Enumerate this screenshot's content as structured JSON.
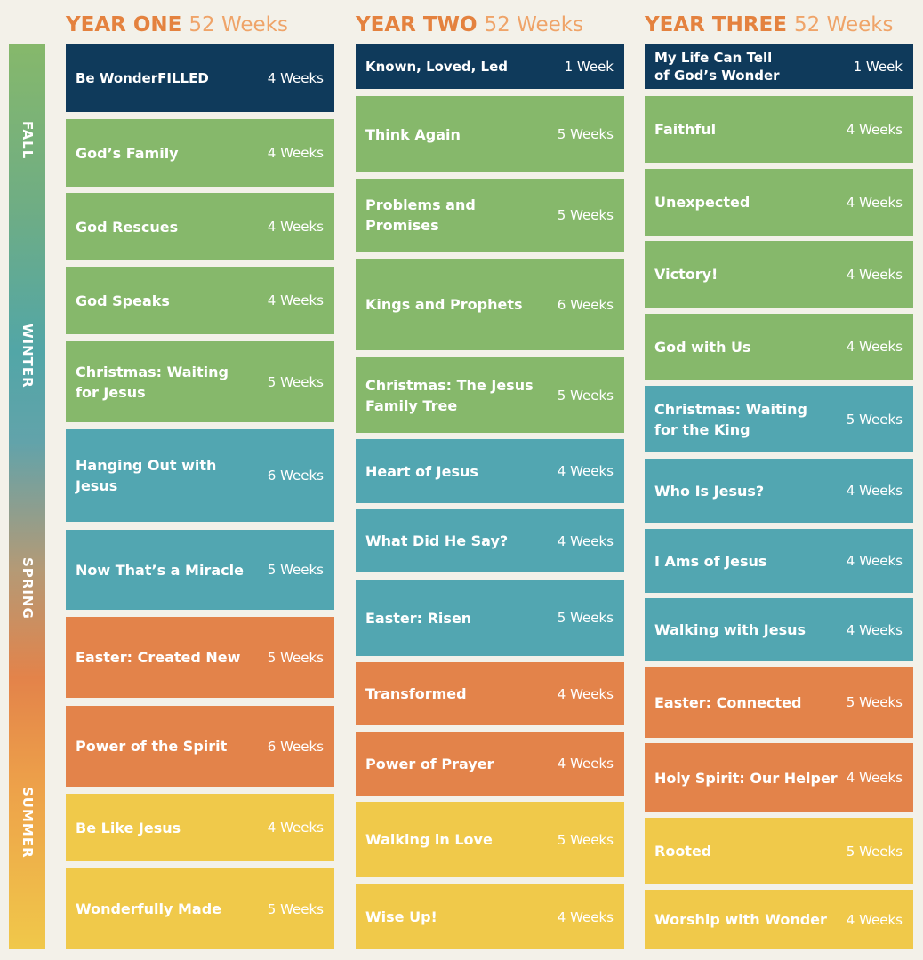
{
  "seasons": [
    "FALL",
    "WINTER",
    "SPRING",
    "SUMMER"
  ],
  "years": [
    {
      "label": "YEAR ONE",
      "weeks": "52 Weeks",
      "units": [
        {
          "title": "Be WonderFILLED",
          "duration": "4 Weeks",
          "color": "navy"
        },
        {
          "title": "God’s Family",
          "duration": "4 Weeks",
          "color": "green"
        },
        {
          "title": "God Rescues",
          "duration": "4 Weeks",
          "color": "green"
        },
        {
          "title": "God Speaks",
          "duration": "4 Weeks",
          "color": "green"
        },
        {
          "title": "Christmas: Waiting\nfor Jesus",
          "duration": "5 Weeks",
          "color": "green"
        },
        {
          "title": "Hanging Out with Jesus",
          "duration": "6 Weeks",
          "color": "teal"
        },
        {
          "title": "Now That’s a Miracle",
          "duration": "5 Weeks",
          "color": "teal"
        },
        {
          "title": "Easter: Created New",
          "duration": "5 Weeks",
          "color": "orange"
        },
        {
          "title": "Power of the Spirit",
          "duration": "6 Weeks",
          "color": "orange"
        },
        {
          "title": "Be Like Jesus",
          "duration": "4 Weeks",
          "color": "yellow"
        },
        {
          "title": "Wonderfully Made",
          "duration": "5 Weeks",
          "color": "yellow"
        }
      ]
    },
    {
      "label": "YEAR TWO",
      "weeks": "52 Weeks",
      "units": [
        {
          "title": "Known, Loved, Led",
          "duration": "1 Week",
          "color": "navy"
        },
        {
          "title": "Think Again",
          "duration": "5 Weeks",
          "color": "green"
        },
        {
          "title": "Problems and Promises",
          "duration": "5 Weeks",
          "color": "green"
        },
        {
          "title": "Kings and Prophets",
          "duration": "6 Weeks",
          "color": "green"
        },
        {
          "title": "Christmas: The Jesus\nFamily Tree",
          "duration": "5 Weeks",
          "color": "green"
        },
        {
          "title": "Heart of Jesus",
          "duration": "4 Weeks",
          "color": "teal"
        },
        {
          "title": "What Did He Say?",
          "duration": "4 Weeks",
          "color": "teal"
        },
        {
          "title": "Easter: Risen",
          "duration": "5 Weeks",
          "color": "teal"
        },
        {
          "title": "Transformed",
          "duration": "4 Weeks",
          "color": "orange"
        },
        {
          "title": "Power of Prayer",
          "duration": "4 Weeks",
          "color": "orange"
        },
        {
          "title": "Walking in Love",
          "duration": "5 Weeks",
          "color": "yellow"
        },
        {
          "title": "Wise Up!",
          "duration": "4 Weeks",
          "color": "yellow"
        }
      ]
    },
    {
      "label": "YEAR THREE",
      "weeks": "52 Weeks",
      "units": [
        {
          "title": "My Life Can Tell\nof God’s Wonder",
          "duration": "1 Week",
          "color": "navy"
        },
        {
          "title": "Faithful",
          "duration": "4 Weeks",
          "color": "green"
        },
        {
          "title": "Unexpected",
          "duration": "4 Weeks",
          "color": "green"
        },
        {
          "title": "Victory!",
          "duration": "4 Weeks",
          "color": "green"
        },
        {
          "title": "God with Us",
          "duration": "4 Weeks",
          "color": "green"
        },
        {
          "title": "Christmas: Waiting\nfor the King",
          "duration": "5 Weeks",
          "color": "teal"
        },
        {
          "title": "Who Is Jesus?",
          "duration": "4 Weeks",
          "color": "teal"
        },
        {
          "title": "I Ams of Jesus",
          "duration": "4 Weeks",
          "color": "teal"
        },
        {
          "title": "Walking with Jesus",
          "duration": "4 Weeks",
          "color": "teal"
        },
        {
          "title": "Easter: Connected",
          "duration": "5 Weeks",
          "color": "orange"
        },
        {
          "title": "Holy Spirit: Our Helper",
          "duration": "4 Weeks",
          "color": "orange"
        },
        {
          "title": "Rooted",
          "duration": "5 Weeks",
          "color": "yellow"
        },
        {
          "title": "Worship with Wonder",
          "duration": "4 Weeks",
          "color": "yellow"
        }
      ]
    }
  ]
}
